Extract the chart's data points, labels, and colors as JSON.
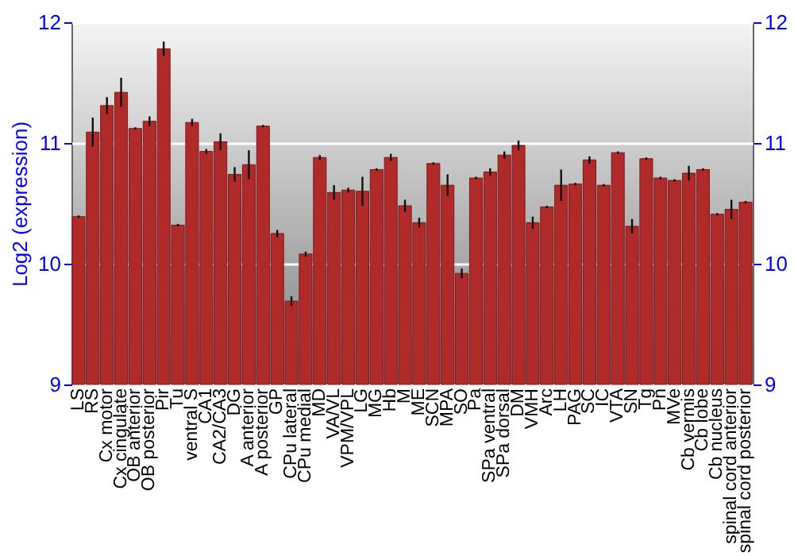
{
  "chart_data": {
    "type": "bar",
    "ylabel": "Log2 (expression)",
    "categories": [
      "LS",
      "RS",
      "Cx motor",
      "Cx cingulate",
      "OB anterior",
      "OB posterior",
      "Pir",
      "Tu",
      "ventral S",
      "CA1",
      "CA2/CA3",
      "DG",
      "A anterior",
      "A posterior",
      "GP",
      "CPu lateral",
      "CPu medial",
      "MD",
      "VA/VL",
      "VPM/VPL",
      "LG",
      "MG",
      "Hb",
      "M",
      "ME",
      "SCN",
      "MPA",
      "SO",
      "Pa",
      "SPa ventral",
      "SPa dorsal",
      "DM",
      "VMH",
      "Arc",
      "LH",
      "PAG",
      "SC",
      "IC",
      "VTA",
      "SN",
      "Tg",
      "Pn",
      "MVe",
      "Cb vermis",
      "Cb lobe",
      "Cb nucleus",
      "spinal cord anterior",
      "spinal cord posterior"
    ],
    "series": [
      {
        "color": "#b02a2a",
        "values": [
          10.39,
          11.09,
          11.31,
          11.42,
          11.12,
          11.18,
          11.78,
          10.32,
          11.17,
          10.93,
          11.01,
          10.74,
          10.82,
          11.14,
          10.25,
          9.69,
          10.08,
          10.88,
          10.59,
          10.61,
          10.6,
          10.78,
          10.88,
          10.48,
          10.34,
          10.83,
          10.65,
          9.92,
          10.71,
          10.76,
          10.9,
          10.98,
          10.34,
          10.47,
          10.65,
          10.66,
          10.86,
          10.65,
          10.92,
          10.31,
          10.87,
          10.71,
          10.69,
          10.75,
          10.78,
          10.41,
          10.45,
          10.51
        ],
        "errors": [
          0.01,
          0.12,
          0.07,
          0.12,
          0.01,
          0.04,
          0.06,
          0.01,
          0.03,
          0.02,
          0.07,
          0.06,
          0.12,
          0.01,
          0.03,
          0.04,
          0.02,
          0.02,
          0.06,
          0.02,
          0.12,
          0.01,
          0.03,
          0.05,
          0.04,
          0.01,
          0.09,
          0.04,
          0.01,
          0.03,
          0.03,
          0.04,
          0.05,
          0.01,
          0.13,
          0.01,
          0.03,
          0.01,
          0.01,
          0.06,
          0.01,
          0.01,
          0.01,
          0.06,
          0.01,
          0.01,
          0.08,
          0.01
        ]
      }
    ],
    "ylim": [
      9,
      12
    ],
    "yticks": [
      9,
      10,
      11,
      12
    ],
    "y2lim": [
      9,
      12
    ],
    "y2ticks": [
      9,
      10,
      11,
      12
    ],
    "grid": "y"
  }
}
